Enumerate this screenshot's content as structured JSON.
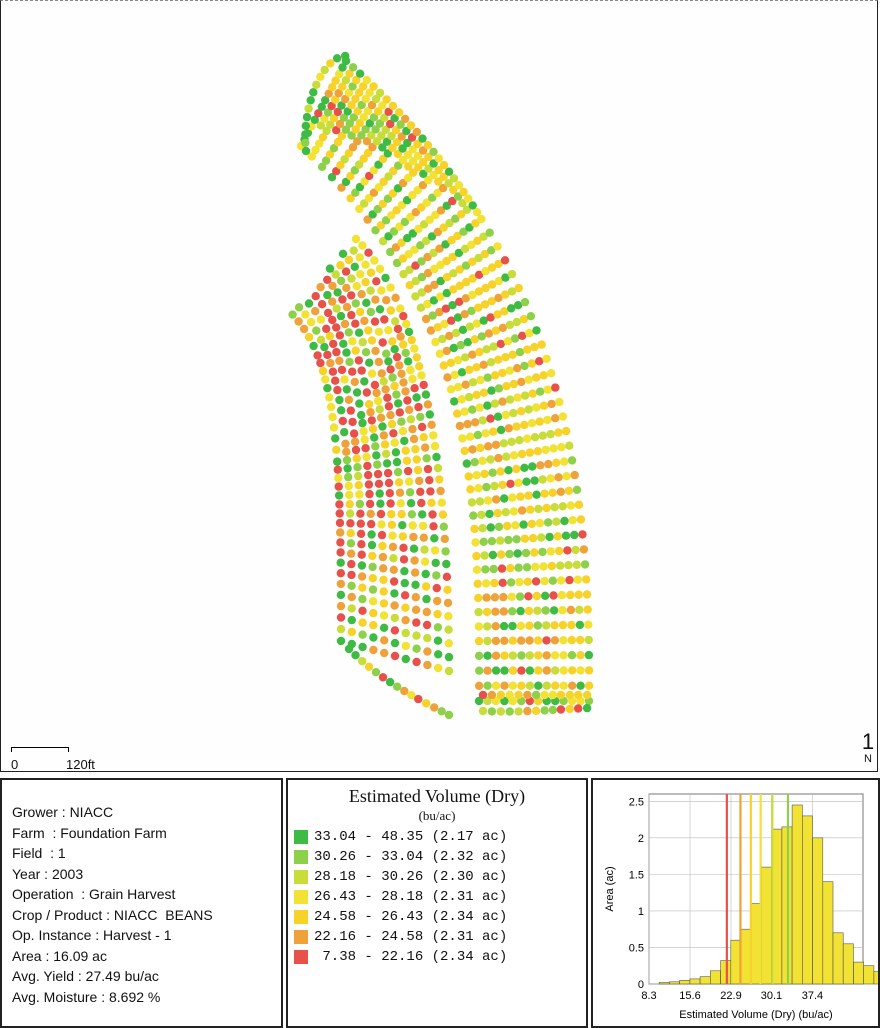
{
  "map": {
    "scale_zero": "0",
    "scale_distance": "120ft",
    "north_glyph": "1",
    "north_label": "N"
  },
  "info": {
    "rows": [
      "Grower : NIACC",
      "Farm  : Foundation Farm",
      "Field  : 1",
      "Year : 2003",
      "Operation  : Grain Harvest",
      "Crop / Product : NIACC  BEANS",
      "Op. Instance : Harvest - 1",
      "Area : 16.09 ac",
      "Avg. Yield : 27.49 bu/ac",
      "Avg. Moisture : 8.692 %"
    ]
  },
  "legend": {
    "title": "Estimated Volume (Dry)",
    "unit": "(bu/ac)",
    "items": [
      {
        "range": "33.04 - 48.35 (2.17 ac)",
        "color": "#3dbb43"
      },
      {
        "range": "30.26 - 33.04 (2.32 ac)",
        "color": "#8dd04a"
      },
      {
        "range": "28.18 - 30.26 (2.30 ac)",
        "color": "#c8dc3a"
      },
      {
        "range": "26.43 - 28.18 (2.31 ac)",
        "color": "#f2e233"
      },
      {
        "range": "24.58 - 26.43 (2.34 ac)",
        "color": "#f7d229"
      },
      {
        "range": "22.16 - 24.58 (2.31 ac)",
        "color": "#f0a23a"
      },
      {
        "range": " 7.38 - 22.16 (2.34 ac)",
        "color": "#e8504a"
      }
    ]
  },
  "chart_data": {
    "type": "bar",
    "xlabel": "Estimated Volume (Dry) (bu/ac)",
    "ylabel": "Area (ac)",
    "xticks": [
      "8.3",
      "15.6",
      "22.9",
      "30.1",
      "37.4"
    ],
    "yticks": [
      "0",
      "0.5",
      "1",
      "1.5",
      "2",
      "2.5"
    ],
    "xlim": [
      8.3,
      46.4
    ],
    "ylim": [
      0,
      2.6
    ],
    "bin_start": 8.3,
    "bin_width": 1.82,
    "values": [
      0.0,
      0.02,
      0.03,
      0.05,
      0.07,
      0.1,
      0.18,
      0.32,
      0.6,
      0.75,
      1.1,
      1.6,
      2.12,
      2.15,
      2.45,
      2.3,
      2.0,
      1.4,
      0.7,
      0.55,
      0.3,
      0.25,
      0.17,
      0.14,
      0.12
    ],
    "bar_color": "#f2e233",
    "lines": [
      {
        "x": 22.16,
        "color": "#e8504a"
      },
      {
        "x": 24.58,
        "color": "#f0a23a"
      },
      {
        "x": 26.43,
        "color": "#f7d229"
      },
      {
        "x": 28.18,
        "color": "#f2e233"
      },
      {
        "x": 30.26,
        "color": "#c8dc3a"
      },
      {
        "x": 33.04,
        "color": "#8dd04a"
      }
    ],
    "grid": true
  }
}
